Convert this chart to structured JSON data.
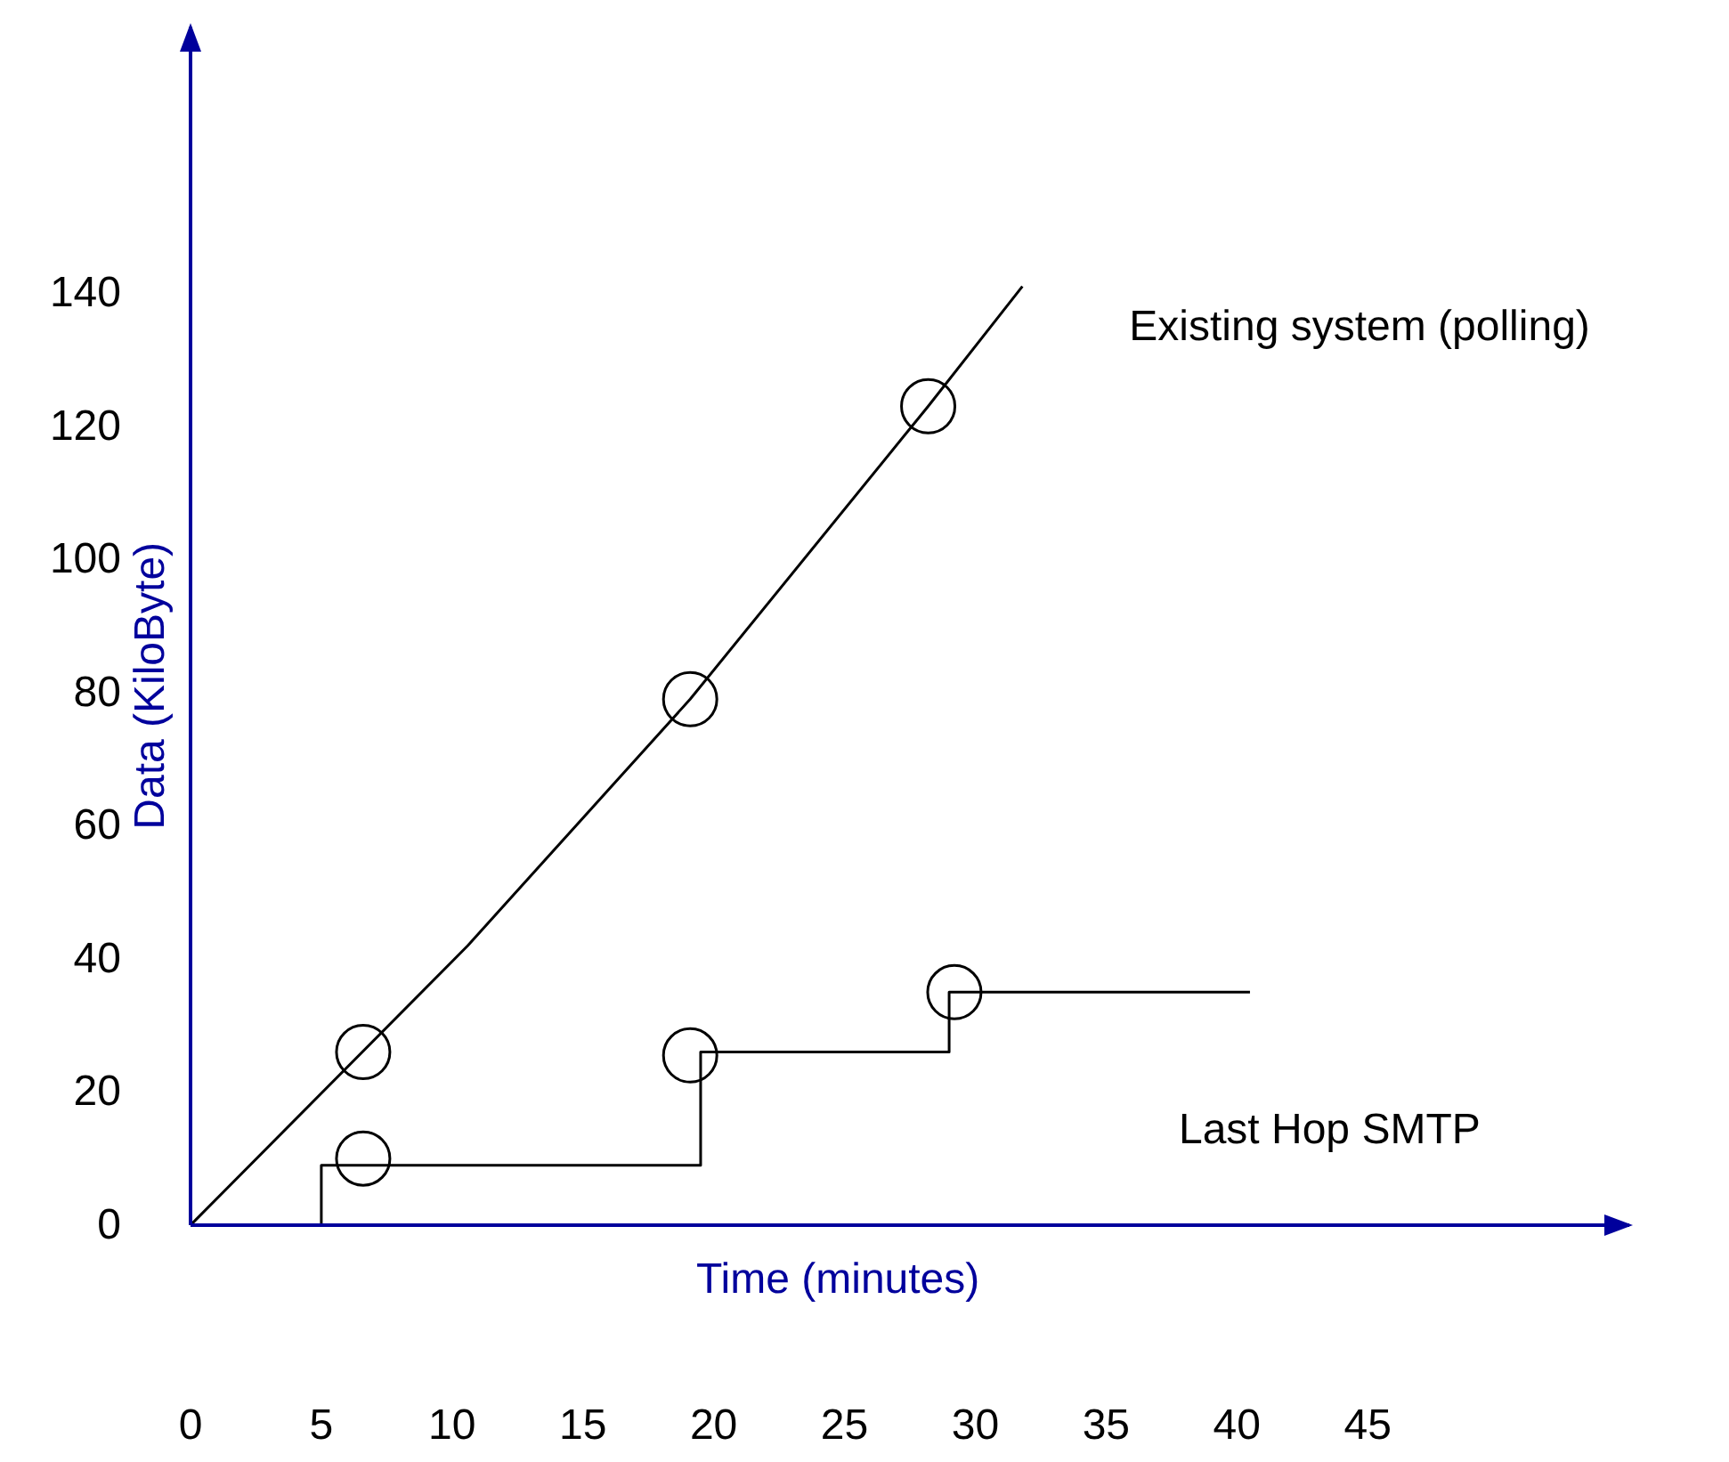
{
  "chart_data": {
    "type": "line",
    "xlabel": "Time (minutes)",
    "ylabel": "Data (KiloByte)",
    "xlim": [
      0,
      55
    ],
    "ylim": [
      0,
      180
    ],
    "xticks": [
      0,
      5,
      10,
      15,
      20,
      25,
      30,
      35,
      40,
      45
    ],
    "yticks": [
      0,
      20,
      40,
      60,
      80,
      100,
      120,
      140
    ],
    "grid": false,
    "legend": false,
    "marker": "none",
    "line_style": "solid",
    "series": [
      {
        "name": "Existing system (polling)",
        "color": "#000000",
        "x": [
          0,
          10.6,
          19.1,
          28.2,
          31.8
        ],
        "values": [
          0,
          42,
          79,
          123,
          141
        ]
      },
      {
        "name": "Last Hop SMTP",
        "type": "step",
        "color": "#000000",
        "x": [
          5,
          5,
          19.5,
          29,
          40.5
        ],
        "values": [
          0,
          9,
          26,
          35,
          35
        ]
      },
      {
        "type": "scatter",
        "color": "#000000",
        "marker": "circle",
        "x": [
          6.6,
          19.1,
          28.2
        ],
        "values": [
          26,
          79,
          123
        ]
      },
      {
        "type": "scatter",
        "color": "#000000",
        "marker": "circle",
        "x": [
          6.6,
          19.1,
          29.2
        ],
        "values": [
          10,
          25.5,
          35
        ]
      }
    ]
  }
}
